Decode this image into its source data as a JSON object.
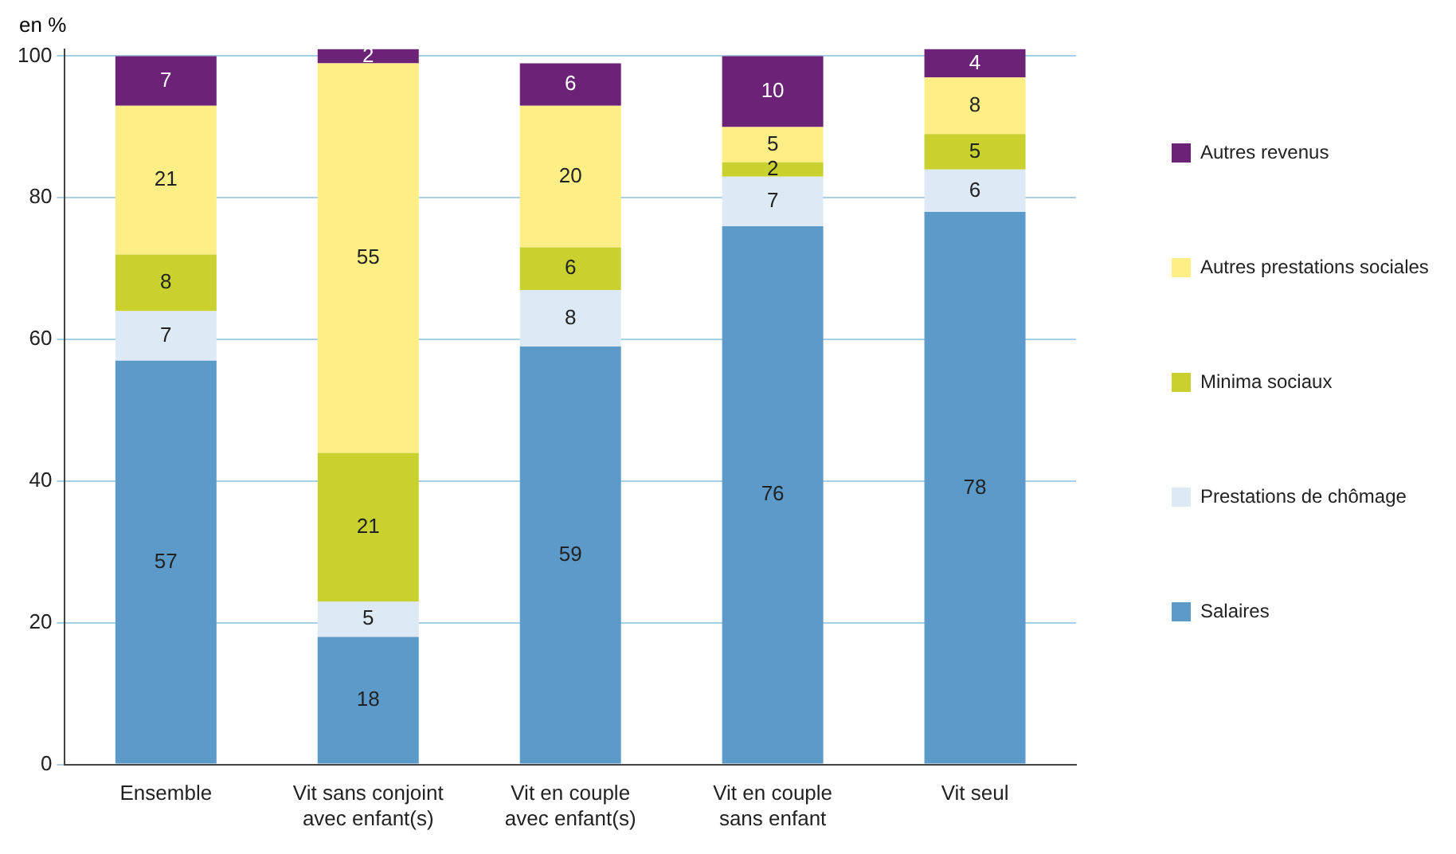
{
  "chart_data": {
    "type": "bar",
    "stacked": true,
    "ylabel": "en %",
    "categories": [
      "Ensemble",
      "Vit sans conjoint\navec enfant(s)",
      "Vit en couple\navec enfant(s)",
      "Vit en couple\nsans enfant",
      "Vit seul"
    ],
    "series": [
      {
        "name": "Salaires",
        "color": "#5b9ac9",
        "values": [
          57,
          18,
          59,
          76,
          78
        ]
      },
      {
        "name": "Prestations de chômage",
        "color": "#dde9f5",
        "values": [
          7,
          5,
          8,
          7,
          6
        ]
      },
      {
        "name": "Minima sociaux",
        "color": "#c9d12e",
        "values": [
          8,
          21,
          6,
          2,
          5
        ]
      },
      {
        "name": "Autres prestations sociales",
        "color": "#fdee86",
        "values": [
          21,
          55,
          20,
          5,
          8
        ]
      },
      {
        "name": "Autres revenus",
        "color": "#6b2277",
        "values": [
          7,
          2,
          6,
          10,
          4
        ]
      }
    ],
    "ylim": [
      0,
      101
    ],
    "yticks": [
      0,
      20,
      40,
      60,
      80,
      100
    ],
    "grid": "y",
    "legend": "right",
    "data_labels": true
  }
}
